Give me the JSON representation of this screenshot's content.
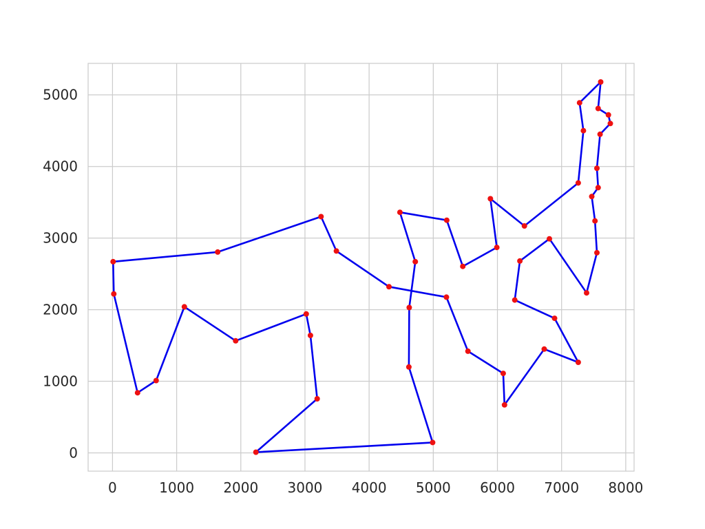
{
  "chart_data": {
    "type": "line",
    "title": "",
    "xlabel": "",
    "ylabel": "",
    "xlim": [
      -380,
      8130
    ],
    "ylim": [
      -255,
      5440
    ],
    "x_ticks": [
      0,
      1000,
      2000,
      3000,
      4000,
      5000,
      6000,
      7000,
      8000
    ],
    "y_ticks": [
      0,
      1000,
      2000,
      3000,
      4000,
      5000
    ],
    "grid": true,
    "legend": "none",
    "colors": {
      "line": "#0000ee",
      "marker": "#ee1111",
      "grid": "#cccccc",
      "frame": "#cccccc",
      "text": "#262626"
    },
    "series": [
      {
        "points": [
          [
            2235,
            10
          ],
          [
            3190,
            755
          ],
          [
            3085,
            1640
          ],
          [
            3020,
            1940
          ],
          [
            1920,
            1565
          ],
          [
            1120,
            2040
          ],
          [
            680,
            1010
          ],
          [
            390,
            840
          ],
          [
            20,
            2220
          ],
          [
            10,
            2670
          ],
          [
            1640,
            2805
          ],
          [
            3250,
            3300
          ],
          [
            3490,
            2820
          ],
          [
            4310,
            2320
          ],
          [
            5205,
            2175
          ],
          [
            5540,
            1420
          ],
          [
            6090,
            1110
          ],
          [
            6110,
            670
          ],
          [
            6730,
            1450
          ],
          [
            7260,
            1265
          ],
          [
            6890,
            1880
          ],
          [
            6270,
            2135
          ],
          [
            6350,
            2680
          ],
          [
            6810,
            2990
          ],
          [
            7390,
            2235
          ],
          [
            7550,
            2795
          ],
          [
            7520,
            3240
          ],
          [
            7470,
            3580
          ],
          [
            7570,
            3705
          ],
          [
            7550,
            3975
          ],
          [
            7600,
            4450
          ],
          [
            7760,
            4600
          ],
          [
            7730,
            4720
          ],
          [
            7570,
            4810
          ],
          [
            7610,
            5180
          ],
          [
            7280,
            4890
          ],
          [
            7340,
            4500
          ],
          [
            7260,
            3770
          ],
          [
            6420,
            3170
          ],
          [
            5890,
            3550
          ],
          [
            5990,
            2870
          ],
          [
            5460,
            2605
          ],
          [
            5210,
            3250
          ],
          [
            4480,
            3360
          ],
          [
            4720,
            2670
          ],
          [
            4625,
            2030
          ],
          [
            4620,
            1200
          ],
          [
            4990,
            145
          ],
          [
            2235,
            10
          ]
        ]
      }
    ]
  }
}
